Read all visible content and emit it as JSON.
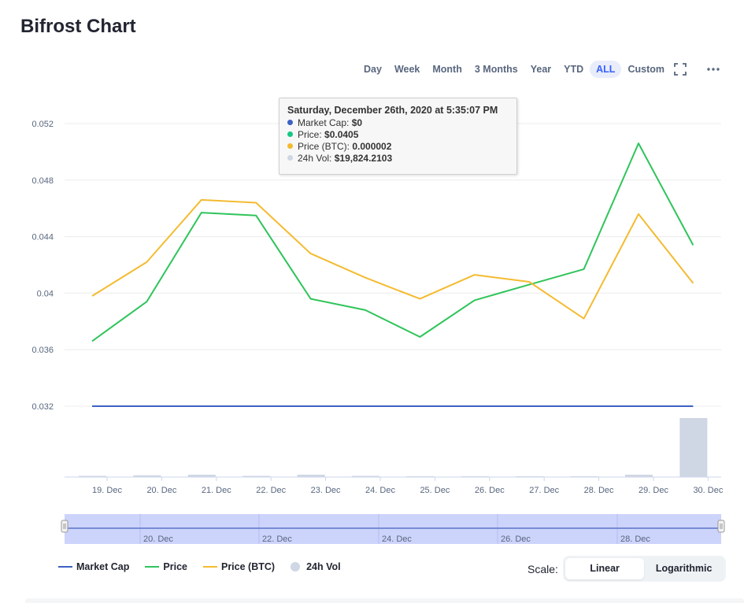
{
  "page": {
    "title": "Bifrost Chart"
  },
  "range_buttons": [
    {
      "label": "Day",
      "active": false
    },
    {
      "label": "Week",
      "active": false
    },
    {
      "label": "Month",
      "active": false
    },
    {
      "label": "3 Months",
      "active": false
    },
    {
      "label": "Year",
      "active": false
    },
    {
      "label": "YTD",
      "active": false
    },
    {
      "label": "ALL",
      "active": true
    },
    {
      "label": "Custom",
      "active": false
    }
  ],
  "toolbar_icons": [
    "fullscreen-icon",
    "more-options-icon"
  ],
  "tooltip": {
    "title": "Saturday, December 26th, 2020 at 5:35:07 PM",
    "rows": [
      {
        "label": "Market Cap:",
        "value": "$0",
        "color": "#3d61c3"
      },
      {
        "label": "Price:",
        "value": "$0.0405",
        "color": "#16c784"
      },
      {
        "label": "Price (BTC):",
        "value": "0.000002",
        "color": "#f3ba2f"
      },
      {
        "label": "24h Vol:",
        "value": "$19,824.2103",
        "color": "#cfd6e4"
      }
    ]
  },
  "legend": {
    "market_cap": "Market Cap",
    "price": "Price",
    "price_btc": "Price (BTC)",
    "volume": "24h Vol"
  },
  "scale": {
    "label": "Scale:",
    "options": [
      "Linear",
      "Logarithmic"
    ],
    "active": "Linear"
  },
  "colors": {
    "market_cap": "#3d61c3",
    "price": "#2fc45a",
    "price_btc": "#f4bb30",
    "volume": "#cfd6e4",
    "navigator_fill": "#c4ccfa",
    "grid": "#ececec",
    "accent": "#3861fb"
  },
  "chart_data": {
    "type": "line",
    "x": [
      "19. Dec",
      "20. Dec",
      "21. Dec",
      "22. Dec",
      "23. Dec",
      "24. Dec",
      "25. Dec",
      "26. Dec",
      "27. Dec",
      "28. Dec",
      "29. Dec",
      "30. Dec"
    ],
    "y_ticks": [
      "0.052",
      "0.048",
      "0.044",
      "0.04",
      "0.036",
      "0.032"
    ],
    "ylim": [
      0.032,
      0.052
    ],
    "grid": true,
    "series": [
      {
        "name": "Price",
        "values": [
          0.0366,
          0.0394,
          0.0457,
          0.0455,
          0.0396,
          0.0388,
          0.0369,
          0.0395,
          0.0406,
          0.0417,
          0.0506,
          0.0434
        ]
      },
      {
        "name": "Price (BTC)",
        "values": [
          0.0398,
          0.0422,
          0.0466,
          0.0464,
          0.0428,
          0.0411,
          0.0396,
          0.0413,
          0.0408,
          0.0382,
          0.0456,
          0.0407
        ]
      },
      {
        "name": "Market Cap",
        "values": [
          0.032,
          0.032,
          0.032,
          0.032,
          0.032,
          0.032,
          0.032,
          0.032,
          0.032,
          0.032,
          0.032,
          0.032
        ]
      }
    ],
    "volume": {
      "name": "24h Vol",
      "values": [
        0.02,
        0.03,
        0.04,
        0.02,
        0.04,
        0.02,
        0.01,
        0.01,
        0.01,
        0.01,
        0.04,
        1.0
      ]
    },
    "navigator_ticks": [
      "20. Dec",
      "22. Dec",
      "24. Dec",
      "26. Dec",
      "28. Dec"
    ],
    "legend_position": "bottom-left"
  }
}
